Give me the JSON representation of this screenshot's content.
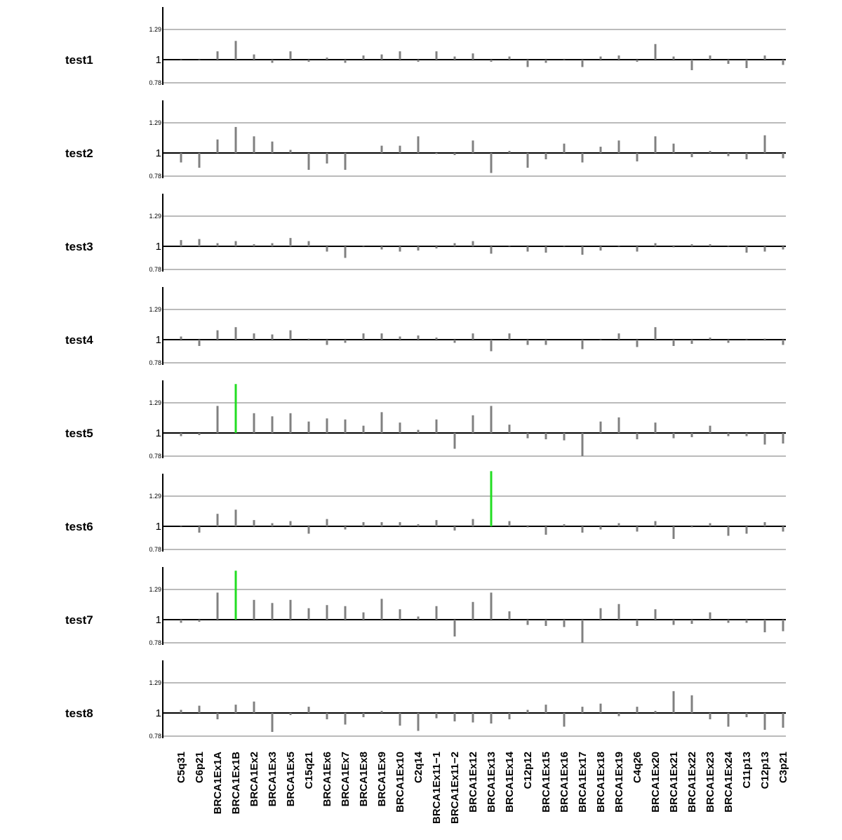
{
  "chart_data": {
    "type": "bar",
    "baseline": 1,
    "y_ticks": [
      1.29,
      1,
      0.78
    ],
    "y_tick_labels": [
      "1.29",
      "1",
      "0.78"
    ],
    "ylim": [
      0.78,
      1.5
    ],
    "grid": true,
    "colors": {
      "normal": "#808080",
      "highlight": "#22dd22",
      "grid": "#bbbbbb",
      "axis": "#000000"
    },
    "categories": [
      "C5q31",
      "C6p21",
      "BRCA1Ex1A",
      "BRCA1Ex1B",
      "BRCA1Ex2",
      "BRCA1Ex3",
      "BRCA1Ex5",
      "C15q21",
      "BRCA1Ex6",
      "BRCA1Ex7",
      "BRCA1Ex8",
      "BRCA1Ex9",
      "BRCA1Ex10",
      "C2q14",
      "BRCA1Ex11−1",
      "BRCA1Ex11−2",
      "BRCA1Ex12",
      "BRCA1Ex13",
      "BRCA1Ex14",
      "C12p12",
      "BRCA1Ex15",
      "BRCA1Ex16",
      "BRCA1Ex17",
      "BRCA1Ex18",
      "BRCA1Ex19",
      "C4q26",
      "BRCA1Ex20",
      "BRCA1Ex21",
      "BRCA1Ex22",
      "BRCA1Ex23",
      "BRCA1Ex24",
      "C11p13",
      "C12p13",
      "C3p21"
    ],
    "series": [
      {
        "name": "test1",
        "values": [
          0.99,
          0.99,
          1.08,
          1.18,
          1.05,
          0.97,
          1.08,
          0.98,
          1.02,
          0.97,
          1.04,
          1.05,
          1.08,
          0.98,
          1.08,
          1.03,
          1.06,
          0.98,
          1.03,
          0.93,
          0.97,
          0.99,
          0.93,
          1.03,
          1.04,
          0.98,
          1.15,
          1.03,
          0.9,
          1.04,
          0.96,
          0.92,
          1.04,
          0.95
        ],
        "highlight": []
      },
      {
        "name": "test2",
        "values": [
          0.91,
          0.86,
          1.13,
          1.25,
          1.16,
          1.11,
          1.03,
          0.84,
          0.9,
          0.84,
          1.0,
          1.07,
          1.07,
          1.16,
          0.99,
          0.98,
          1.12,
          0.81,
          1.02,
          0.86,
          0.94,
          1.09,
          0.91,
          1.06,
          1.12,
          0.92,
          1.16,
          1.09,
          0.96,
          1.02,
          0.97,
          0.94,
          1.17,
          0.95
        ],
        "highlight": []
      },
      {
        "name": "test3",
        "values": [
          1.06,
          1.07,
          1.03,
          1.05,
          1.02,
          1.03,
          1.08,
          1.05,
          0.95,
          0.89,
          1.01,
          0.97,
          0.95,
          0.96,
          0.98,
          1.03,
          1.05,
          0.93,
          1.01,
          0.95,
          0.94,
          1.01,
          0.92,
          0.96,
          1.01,
          0.95,
          1.03,
          0.99,
          1.02,
          1.02,
          1.01,
          0.94,
          0.95,
          0.97
        ],
        "highlight": []
      },
      {
        "name": "test4",
        "values": [
          1.03,
          0.94,
          1.09,
          1.12,
          1.06,
          1.05,
          1.09,
          1.01,
          0.95,
          0.97,
          1.06,
          1.06,
          1.03,
          1.04,
          1.02,
          0.97,
          1.06,
          0.89,
          1.06,
          0.95,
          0.95,
          1.0,
          0.91,
          0.99,
          1.06,
          0.93,
          1.12,
          0.94,
          0.96,
          1.02,
          0.97,
          0.99,
          1.01,
          0.95
        ],
        "highlight": []
      },
      {
        "name": "test5",
        "values": [
          0.97,
          0.98,
          1.26,
          1.47,
          1.19,
          1.16,
          1.19,
          1.11,
          1.14,
          1.13,
          1.07,
          1.2,
          1.1,
          1.03,
          1.13,
          0.85,
          1.17,
          1.26,
          1.08,
          0.95,
          0.94,
          0.93,
          0.78,
          1.11,
          1.15,
          0.94,
          1.1,
          0.95,
          0.96,
          1.07,
          0.97,
          0.97,
          0.89,
          0.9
        ],
        "highlight": [
          3
        ]
      },
      {
        "name": "test6",
        "values": [
          1.01,
          0.94,
          1.12,
          1.16,
          1.06,
          1.03,
          1.05,
          0.93,
          1.07,
          0.97,
          1.04,
          1.04,
          1.04,
          1.02,
          1.06,
          0.96,
          1.07,
          1.53,
          1.05,
          0.99,
          0.92,
          1.02,
          0.94,
          0.97,
          1.03,
          0.95,
          1.05,
          0.88,
          0.99,
          1.03,
          0.91,
          0.93,
          1.04,
          0.95
        ],
        "highlight": [
          17
        ]
      },
      {
        "name": "test7",
        "values": [
          0.97,
          0.98,
          1.26,
          1.47,
          1.19,
          1.16,
          1.19,
          1.11,
          1.14,
          1.13,
          1.07,
          1.2,
          1.1,
          1.03,
          1.13,
          0.84,
          1.17,
          1.26,
          1.08,
          0.95,
          0.94,
          0.93,
          0.78,
          1.11,
          1.15,
          0.94,
          1.1,
          0.95,
          0.96,
          1.07,
          0.97,
          0.97,
          0.88,
          0.89
        ],
        "highlight": [
          3
        ]
      },
      {
        "name": "test8",
        "values": [
          1.03,
          1.07,
          0.94,
          1.08,
          1.11,
          0.82,
          0.98,
          1.06,
          0.94,
          0.89,
          0.96,
          1.02,
          0.88,
          0.83,
          0.95,
          0.92,
          0.91,
          0.9,
          0.94,
          1.03,
          1.08,
          0.87,
          1.06,
          1.09,
          0.97,
          1.06,
          1.02,
          1.21,
          1.17,
          0.94,
          0.87,
          0.96,
          0.84,
          0.86
        ],
        "highlight": []
      }
    ]
  }
}
